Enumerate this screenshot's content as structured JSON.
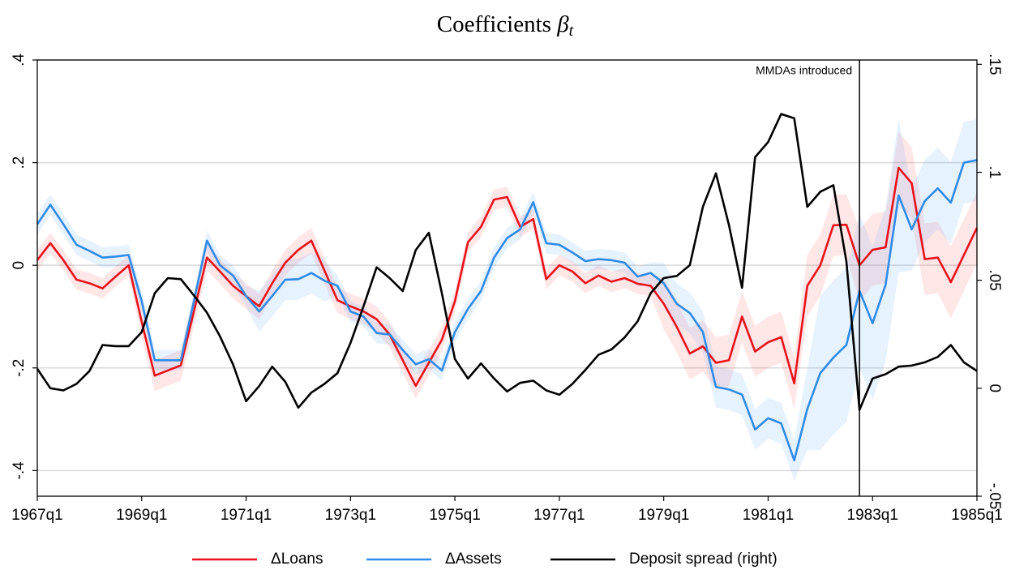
{
  "chart_data": {
    "type": "line",
    "title_text": "Coefficients",
    "title_symbol": "β",
    "title_subscript": "t",
    "x": [
      "1967q1",
      "1967q2",
      "1967q3",
      "1967q4",
      "1968q1",
      "1968q2",
      "1968q3",
      "1968q4",
      "1969q1",
      "1969q2",
      "1969q3",
      "1969q4",
      "1970q1",
      "1970q2",
      "1970q3",
      "1970q4",
      "1971q1",
      "1971q2",
      "1971q3",
      "1971q4",
      "1972q1",
      "1972q2",
      "1972q3",
      "1972q4",
      "1973q1",
      "1973q2",
      "1973q3",
      "1973q4",
      "1974q1",
      "1974q2",
      "1974q3",
      "1974q4",
      "1975q1",
      "1975q2",
      "1975q3",
      "1975q4",
      "1976q1",
      "1976q2",
      "1976q3",
      "1976q4",
      "1977q1",
      "1977q2",
      "1977q3",
      "1977q4",
      "1978q1",
      "1978q2",
      "1978q3",
      "1978q4",
      "1979q1",
      "1979q2",
      "1979q3",
      "1979q4",
      "1980q1",
      "1980q2",
      "1980q3",
      "1980q4",
      "1981q1",
      "1981q2",
      "1981q3",
      "1981q4",
      "1982q1",
      "1982q2",
      "1982q3",
      "1982q4",
      "1983q1",
      "1983q2",
      "1983q3",
      "1983q4",
      "1984q1",
      "1984q2",
      "1984q3",
      "1984q4",
      "1985q1"
    ],
    "xlim": [
      "1967q1",
      "1985q1"
    ],
    "xticks": [
      "1967q1",
      "1969q1",
      "1971q1",
      "1973q1",
      "1975q1",
      "1977q1",
      "1979q1",
      "1981q1",
      "1983q1",
      "1985q1"
    ],
    "ylim": [
      -0.45,
      0.4
    ],
    "yticks": [
      {
        "value": 0.4,
        "label": ".4"
      },
      {
        "value": 0.2,
        "label": ".2"
      },
      0,
      {
        "value": -0.2,
        "label": "-.2"
      },
      {
        "value": -0.4,
        "label": "-.4"
      }
    ],
    "y2lim": [
      -0.05,
      0.152
    ],
    "y2ticks": [
      {
        "value": 0.15,
        "label": ".15"
      },
      {
        "value": 0.1,
        "label": ".1"
      },
      {
        "value": 0.05,
        "label": ".05"
      },
      0,
      {
        "value": -0.05,
        "label": "-.05"
      }
    ],
    "grid": true,
    "legend": "bottom",
    "series": [
      {
        "name": "ΔLoans",
        "color": "#e8121b",
        "band_color": "rgba(255,60,60,0.12)",
        "values": [
          0.01,
          0.043,
          0.01,
          -0.028,
          -0.035,
          -0.045,
          -0.022,
          0.0,
          -0.11,
          -0.215,
          -0.205,
          -0.195,
          -0.09,
          0.015,
          -0.012,
          -0.04,
          -0.06,
          -0.08,
          -0.035,
          0.005,
          0.03,
          0.048,
          -0.01,
          -0.068,
          -0.08,
          -0.09,
          -0.105,
          -0.135,
          -0.185,
          -0.235,
          -0.19,
          -0.145,
          -0.07,
          0.045,
          0.075,
          0.128,
          0.133,
          0.075,
          0.09,
          -0.027,
          0.0,
          -0.012,
          -0.035,
          -0.02,
          -0.032,
          -0.025,
          -0.036,
          -0.04,
          -0.075,
          -0.12,
          -0.172,
          -0.158,
          -0.19,
          -0.185,
          -0.1,
          -0.168,
          -0.15,
          -0.14,
          -0.23,
          -0.04,
          0.0,
          0.078,
          0.079,
          0.0,
          0.03,
          0.035,
          0.19,
          0.16,
          0.012,
          0.015,
          -0.033,
          0.02,
          0.073
        ],
        "errors": [
          0.02,
          0.02,
          0.02,
          0.02,
          0.02,
          0.02,
          0.02,
          0.02,
          0.03,
          0.03,
          0.03,
          0.03,
          0.03,
          0.025,
          0.025,
          0.025,
          0.025,
          0.025,
          0.025,
          0.025,
          0.025,
          0.025,
          0.025,
          0.025,
          0.025,
          0.025,
          0.025,
          0.025,
          0.025,
          0.025,
          0.025,
          0.025,
          0.02,
          0.02,
          0.02,
          0.02,
          0.02,
          0.02,
          0.02,
          0.02,
          0.02,
          0.02,
          0.02,
          0.02,
          0.02,
          0.02,
          0.02,
          0.02,
          0.05,
          0.05,
          0.05,
          0.05,
          0.05,
          0.05,
          0.05,
          0.05,
          0.05,
          0.05,
          0.05,
          0.06,
          0.06,
          0.06,
          0.06,
          0.07,
          0.07,
          0.07,
          0.07,
          0.07,
          0.07,
          0.07,
          0.07,
          0.07,
          0.07
        ]
      },
      {
        "name": "ΔAssets",
        "color": "#2f8ae8",
        "band_color": "rgba(60,150,255,0.12)",
        "values": [
          0.08,
          0.118,
          0.08,
          0.04,
          0.028,
          0.015,
          0.017,
          0.02,
          -0.07,
          -0.185,
          -0.185,
          -0.185,
          -0.07,
          0.048,
          0.0,
          -0.02,
          -0.06,
          -0.09,
          -0.06,
          -0.028,
          -0.027,
          -0.015,
          -0.03,
          -0.04,
          -0.09,
          -0.1,
          -0.132,
          -0.135,
          -0.165,
          -0.193,
          -0.183,
          -0.205,
          -0.13,
          -0.085,
          -0.05,
          0.015,
          0.053,
          0.07,
          0.123,
          0.043,
          0.04,
          0.025,
          0.008,
          0.012,
          0.01,
          0.005,
          -0.022,
          -0.015,
          -0.035,
          -0.075,
          -0.093,
          -0.13,
          -0.237,
          -0.242,
          -0.252,
          -0.32,
          -0.298,
          -0.308,
          -0.38,
          -0.28,
          -0.21,
          -0.18,
          -0.155,
          -0.05,
          -0.113,
          -0.038,
          0.136,
          0.07,
          0.125,
          0.15,
          0.122,
          0.2,
          0.205
        ],
        "errors": [
          0.02,
          0.02,
          0.02,
          0.02,
          0.02,
          0.02,
          0.02,
          0.02,
          0.02,
          0.02,
          0.02,
          0.02,
          0.02,
          0.02,
          0.02,
          0.02,
          0.02,
          0.04,
          0.04,
          0.04,
          0.04,
          0.04,
          0.04,
          0.02,
          0.02,
          0.02,
          0.02,
          0.02,
          0.02,
          0.02,
          0.02,
          0.02,
          0.02,
          0.02,
          0.02,
          0.02,
          0.02,
          0.02,
          0.02,
          0.02,
          0.02,
          0.02,
          0.02,
          0.02,
          0.02,
          0.02,
          0.02,
          0.02,
          0.04,
          0.04,
          0.04,
          0.04,
          0.04,
          0.04,
          0.04,
          0.04,
          0.04,
          0.04,
          0.04,
          0.08,
          0.15,
          0.15,
          0.15,
          0.15,
          0.15,
          0.15,
          0.15,
          0.08,
          0.08,
          0.08,
          0.08,
          0.08,
          0.08
        ]
      },
      {
        "name": "Deposit spread (right)",
        "color": "#000000",
        "axis": "y2",
        "values": [
          0.009,
          0.0,
          -0.001,
          0.002,
          0.008,
          0.02,
          0.0195,
          0.0195,
          0.026,
          0.044,
          0.051,
          0.0505,
          0.043,
          0.035,
          0.024,
          0.011,
          -0.006,
          0.001,
          0.01,
          0.003,
          -0.009,
          -0.002,
          0.002,
          0.007,
          0.021,
          0.038,
          0.056,
          0.051,
          0.045,
          0.064,
          0.072,
          0.044,
          0.0135,
          0.0045,
          0.0115,
          0.0045,
          -0.0015,
          0.0025,
          0.0035,
          -0.001,
          -0.003,
          0.002,
          0.0085,
          0.0155,
          0.018,
          0.0235,
          0.031,
          0.044,
          0.051,
          0.052,
          0.057,
          0.084,
          0.0995,
          0.0755,
          0.0465,
          0.107,
          0.114,
          0.127,
          0.125,
          0.084,
          0.091,
          0.094,
          0.0585,
          -0.01,
          0.0045,
          0.0065,
          0.01,
          0.0105,
          0.012,
          0.0145,
          0.02,
          0.012,
          0.008
        ]
      }
    ],
    "annotations": [
      {
        "x": "1982q4",
        "text": "MMDAs introduced"
      }
    ]
  }
}
